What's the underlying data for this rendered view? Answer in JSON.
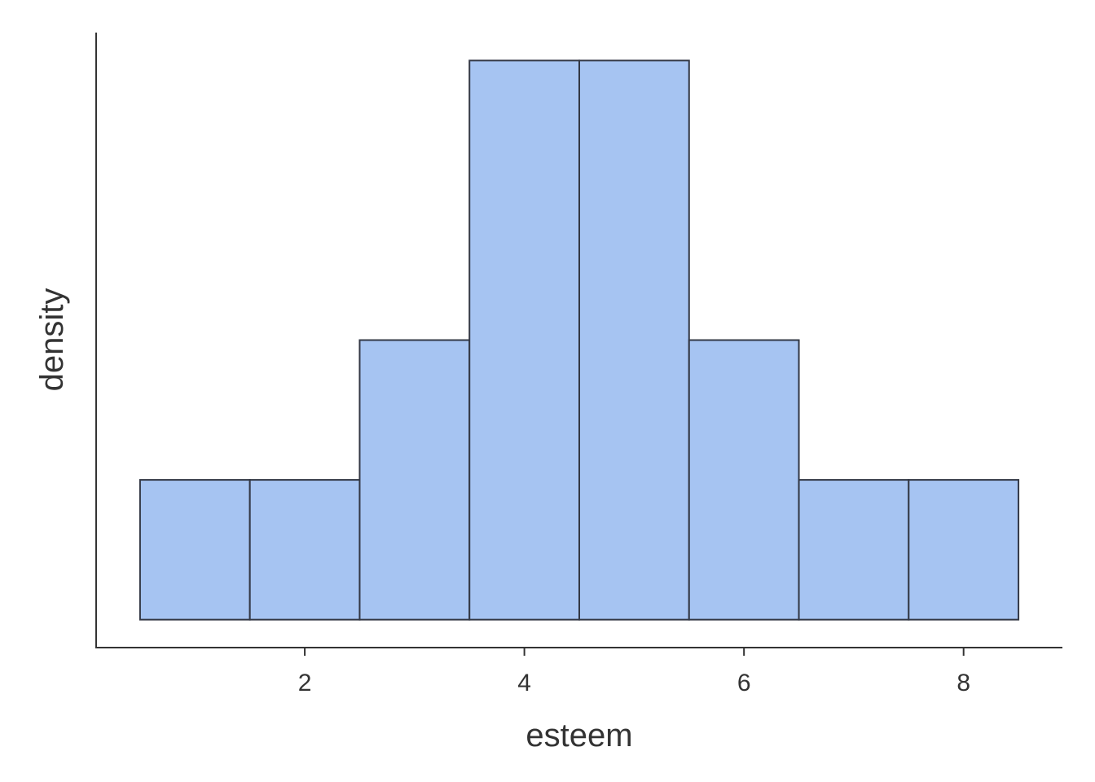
{
  "chart_data": {
    "type": "bar",
    "subtype": "histogram",
    "bins": [
      {
        "x0": 0.5,
        "x1": 1.5,
        "density": 0.1
      },
      {
        "x0": 1.5,
        "x1": 2.5,
        "density": 0.1
      },
      {
        "x0": 2.5,
        "x1": 3.5,
        "density": 0.2
      },
      {
        "x0": 3.5,
        "x1": 4.5,
        "density": 0.4
      },
      {
        "x0": 4.5,
        "x1": 5.5,
        "density": 0.4
      },
      {
        "x0": 5.5,
        "x1": 6.5,
        "density": 0.2
      },
      {
        "x0": 6.5,
        "x1": 7.5,
        "density": 0.1
      },
      {
        "x0": 7.5,
        "x1": 8.5,
        "density": 0.1
      }
    ],
    "xlabel": "esteem",
    "ylabel": "density",
    "xticks": [
      2,
      4,
      6,
      8
    ],
    "xlim": [
      0.1,
      8.9
    ],
    "ylim": [
      -0.02,
      0.42
    ],
    "y_tick_labels_shown": false,
    "grid": false,
    "legend": "none",
    "colors": {
      "bar_fill": "#a6c4f2",
      "bar_outline": "#333845",
      "axis": "#333333",
      "text": "#333333"
    }
  }
}
